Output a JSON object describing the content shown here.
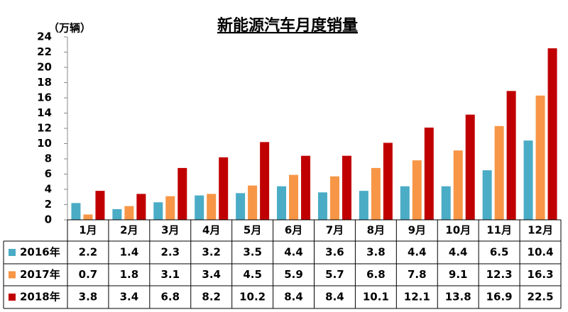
{
  "chart_data": {
    "type": "bar",
    "title": "新能源汽车月度销量",
    "ylabel": "（万辆）",
    "categories": [
      "1月",
      "2月",
      "3月",
      "4月",
      "5月",
      "6月",
      "7月",
      "8月",
      "9月",
      "10月",
      "11月",
      "12月"
    ],
    "series": [
      {
        "name": "2016年",
        "color": "#4bacc6",
        "values": [
          2.2,
          1.4,
          2.3,
          3.2,
          3.5,
          4.4,
          3.6,
          3.8,
          4.4,
          4.4,
          6.5,
          10.4
        ]
      },
      {
        "name": "2017年",
        "color": "#f79646",
        "values": [
          0.7,
          1.8,
          3.1,
          3.4,
          4.5,
          5.9,
          5.7,
          6.8,
          7.8,
          9.1,
          12.3,
          16.3
        ]
      },
      {
        "name": "2018年",
        "color": "#c00000",
        "values": [
          3.8,
          3.4,
          6.8,
          8.2,
          10.2,
          8.4,
          8.4,
          10.1,
          12.1,
          13.8,
          16.9,
          22.5
        ]
      }
    ],
    "ylim": [
      0,
      24
    ],
    "yticks": [
      0,
      2,
      4,
      6,
      8,
      10,
      12,
      14,
      16,
      18,
      20,
      22,
      24
    ],
    "grid": false,
    "data_table": true
  }
}
